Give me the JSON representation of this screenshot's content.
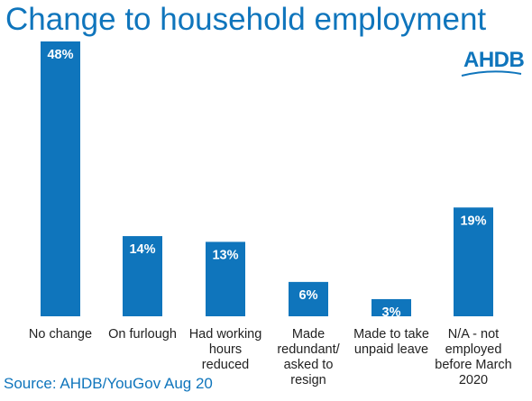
{
  "title": "Change to household employment",
  "logo_text": "AHDB",
  "source": "Source: AHDB/YouGov Aug 20",
  "colors": {
    "accent": "#0f75bc",
    "bar": "#0f75bc",
    "label_text": "#ffffff"
  },
  "chart_data": {
    "type": "bar",
    "title": "Change to household employment",
    "categories": [
      "No change",
      "On furlough",
      "Had working hours reduced",
      "Made redundant/ asked to resign",
      "Made to take unpaid leave",
      "N/A - not employed before March 2020"
    ],
    "category_lines": [
      [
        "No change"
      ],
      [
        "On furlough"
      ],
      [
        "Had working",
        "hours",
        "reduced"
      ],
      [
        "Made",
        "redundant/",
        "asked to",
        "resign"
      ],
      [
        "Made to take",
        "unpaid leave"
      ],
      [
        "N/A - not",
        "employed",
        "before March",
        "2020"
      ]
    ],
    "values": [
      48,
      14,
      13,
      6,
      3,
      19
    ],
    "value_labels": [
      "48%",
      "14%",
      "13%",
      "6%",
      "3%",
      "19%"
    ],
    "xlabel": "",
    "ylabel": "",
    "ylim": [
      0,
      48
    ],
    "grid": false,
    "legend": "none"
  }
}
